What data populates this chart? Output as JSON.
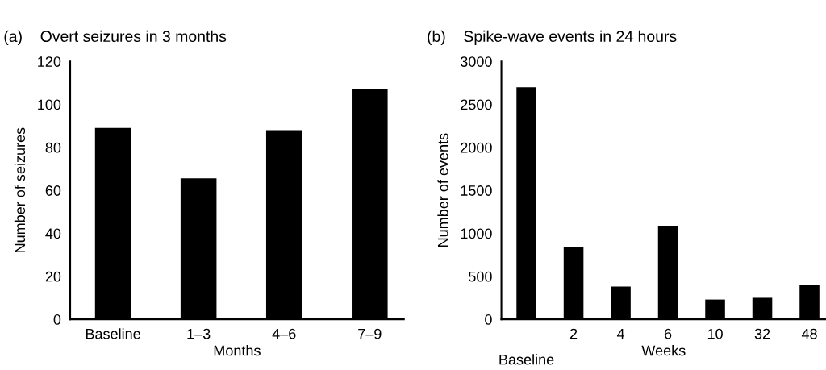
{
  "chart_data": [
    {
      "type": "bar",
      "title": "(a)    Overt seizures in 3 months",
      "xlabel": "Months",
      "ylabel": "Number of seizures",
      "categories": [
        "Baseline",
        "1–3",
        "4–6",
        "7–9"
      ],
      "values": [
        89,
        65.6,
        88,
        107
      ],
      "color": "#000000",
      "ylim": [
        0,
        120
      ],
      "yticks": [
        0,
        20,
        40,
        60,
        80,
        100,
        120
      ],
      "grid": false
    },
    {
      "type": "bar",
      "title": "(b)    Spike-wave events in 24 hours",
      "xlabel": "Weeks",
      "ylabel": "Number of events",
      "categories": [
        "Baseline",
        "2",
        "4",
        "6",
        "10",
        "32",
        "48"
      ],
      "values": [
        2700,
        840,
        380,
        1090,
        230,
        250,
        400
      ],
      "color": "#000000",
      "ylim": [
        0,
        3000
      ],
      "yticks": [
        0,
        500,
        1000,
        1500,
        2000,
        2500,
        3000
      ],
      "grid": false
    }
  ]
}
